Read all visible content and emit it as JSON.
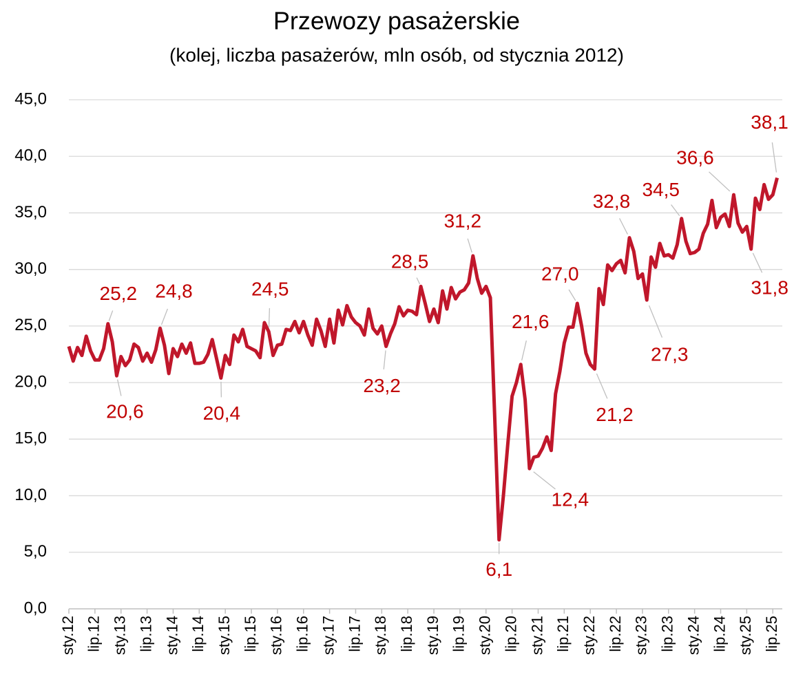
{
  "chart_data": {
    "type": "line",
    "title": "Przewozy pasażerskie",
    "subtitle": "(kolej, liczba pasażerów, mln osób, od stycznia 2012)",
    "color": "#c0172b",
    "grid": true,
    "ylim": [
      0,
      45
    ],
    "yticks": [
      {
        "value": 0,
        "label": "0,0"
      },
      {
        "value": 5,
        "label": "5,0"
      },
      {
        "value": 10,
        "label": "10,0"
      },
      {
        "value": 15,
        "label": "15,0"
      },
      {
        "value": 20,
        "label": "20,0"
      },
      {
        "value": 25,
        "label": "25,0"
      },
      {
        "value": 30,
        "label": "30,0"
      },
      {
        "value": 35,
        "label": "35,0"
      },
      {
        "value": 40,
        "label": "40,0"
      },
      {
        "value": 45,
        "label": "45,0"
      }
    ],
    "categories": [
      "sty.12",
      null,
      null,
      null,
      null,
      null,
      "lip.12",
      null,
      null,
      null,
      null,
      null,
      "sty.13",
      null,
      null,
      null,
      null,
      null,
      "lip.13",
      null,
      null,
      null,
      null,
      null,
      "sty.14",
      null,
      null,
      null,
      null,
      null,
      "lip.14",
      null,
      null,
      null,
      null,
      null,
      "sty.15",
      null,
      null,
      null,
      null,
      null,
      "lip.15",
      null,
      null,
      null,
      null,
      null,
      "sty.16",
      null,
      null,
      null,
      null,
      null,
      "lip.16",
      null,
      null,
      null,
      null,
      null,
      "sty.17",
      null,
      null,
      null,
      null,
      null,
      "lip.17",
      null,
      null,
      null,
      null,
      null,
      "sty.18",
      null,
      null,
      null,
      null,
      null,
      "lip.18",
      null,
      null,
      null,
      null,
      null,
      "sty.19",
      null,
      null,
      null,
      null,
      null,
      "lip.19",
      null,
      null,
      null,
      null,
      null,
      "sty.20",
      null,
      null,
      null,
      null,
      null,
      "lip.20",
      null,
      null,
      null,
      null,
      null,
      "sty.21",
      null,
      null,
      null,
      null,
      null,
      "lip.21",
      null,
      null,
      null,
      null,
      null,
      "sty.22",
      null,
      null,
      null,
      null,
      null,
      "lip.22",
      null,
      null,
      null,
      null,
      null,
      "sty.23",
      null,
      null,
      null,
      null,
      null,
      "lip.23",
      null,
      null,
      null,
      null,
      null,
      "sty.24",
      null,
      null,
      null,
      null,
      null,
      "lip.24",
      null,
      null,
      null,
      null,
      null,
      "sty.25",
      null,
      null,
      null,
      null,
      null,
      "lip.25",
      null
    ],
    "values": [
      23.2,
      21.9,
      23.1,
      22.4,
      24.1,
      22.8,
      22.0,
      22.0,
      23.0,
      25.2,
      23.6,
      20.6,
      22.3,
      21.5,
      22.0,
      23.4,
      23.1,
      21.9,
      22.6,
      21.8,
      22.9,
      24.8,
      23.3,
      20.8,
      23.0,
      22.3,
      23.4,
      22.6,
      23.5,
      21.7,
      21.7,
      21.8,
      22.5,
      23.8,
      22.1,
      20.4,
      22.4,
      21.6,
      24.2,
      23.6,
      24.7,
      23.2,
      23.0,
      22.8,
      22.2,
      25.3,
      24.5,
      22.4,
      23.3,
      23.4,
      24.7,
      24.6,
      25.4,
      24.4,
      25.4,
      24.2,
      23.3,
      25.6,
      24.6,
      23.2,
      25.6,
      23.5,
      26.4,
      25.1,
      26.8,
      25.8,
      25.3,
      25.0,
      24.2,
      26.5,
      24.8,
      24.3,
      25.0,
      23.2,
      24.3,
      25.2,
      26.7,
      25.9,
      26.4,
      26.3,
      26.0,
      28.5,
      27.0,
      25.4,
      26.5,
      25.3,
      28.1,
      26.5,
      28.4,
      27.4,
      28.0,
      28.2,
      28.8,
      31.2,
      29.2,
      27.9,
      28.5,
      27.5,
      17.0,
      6.1,
      10.0,
      14.5,
      18.8,
      20.0,
      21.6,
      18.5,
      12.4,
      13.4,
      13.5,
      14.2,
      15.2,
      14.0,
      19.0,
      21.0,
      23.5,
      24.9,
      24.9,
      27.0,
      25.0,
      22.6,
      21.6,
      21.2,
      28.3,
      26.9,
      30.4,
      29.9,
      30.5,
      30.8,
      29.7,
      32.8,
      31.6,
      29.2,
      29.6,
      27.3,
      31.1,
      30.2,
      32.3,
      31.2,
      31.3,
      31.0,
      32.2,
      34.5,
      32.5,
      31.4,
      31.5,
      31.8,
      33.2,
      34.0,
      36.1,
      33.7,
      34.6,
      34.9,
      33.8,
      36.6,
      34.1,
      33.3,
      33.8,
      31.8,
      36.3,
      35.3,
      37.5,
      36.2,
      36.6,
      38.1
    ],
    "value_labels": [
      null,
      null,
      null,
      null,
      null,
      null,
      null,
      null,
      null,
      "25,2",
      null,
      "20,6",
      null,
      null,
      null,
      null,
      null,
      null,
      null,
      null,
      null,
      "24,8",
      null,
      null,
      null,
      null,
      null,
      null,
      null,
      null,
      null,
      null,
      null,
      null,
      null,
      "20,4",
      null,
      null,
      null,
      null,
      null,
      null,
      null,
      null,
      null,
      null,
      "24,5",
      null,
      null,
      null,
      null,
      null,
      null,
      null,
      null,
      null,
      null,
      null,
      null,
      null,
      null,
      null,
      null,
      null,
      null,
      null,
      null,
      null,
      null,
      null,
      null,
      null,
      null,
      "23,2",
      null,
      null,
      null,
      null,
      null,
      null,
      null,
      "28,5",
      null,
      null,
      null,
      null,
      null,
      null,
      null,
      null,
      null,
      null,
      null,
      "31,2",
      null,
      null,
      null,
      null,
      null,
      "6,1",
      null,
      null,
      null,
      null,
      "21,6",
      null,
      "12,4",
      null,
      null,
      null,
      null,
      null,
      null,
      null,
      null,
      null,
      null,
      "27,0",
      null,
      null,
      null,
      "21,2",
      null,
      null,
      null,
      null,
      null,
      null,
      null,
      "32,8",
      null,
      null,
      null,
      "27,3",
      null,
      null,
      null,
      null,
      null,
      null,
      null,
      "34,5",
      null,
      null,
      null,
      null,
      null,
      null,
      null,
      null,
      null,
      null,
      null,
      "36,6",
      null,
      null,
      null,
      "31,8",
      null,
      null,
      null,
      null,
      null,
      "38,1"
    ]
  }
}
